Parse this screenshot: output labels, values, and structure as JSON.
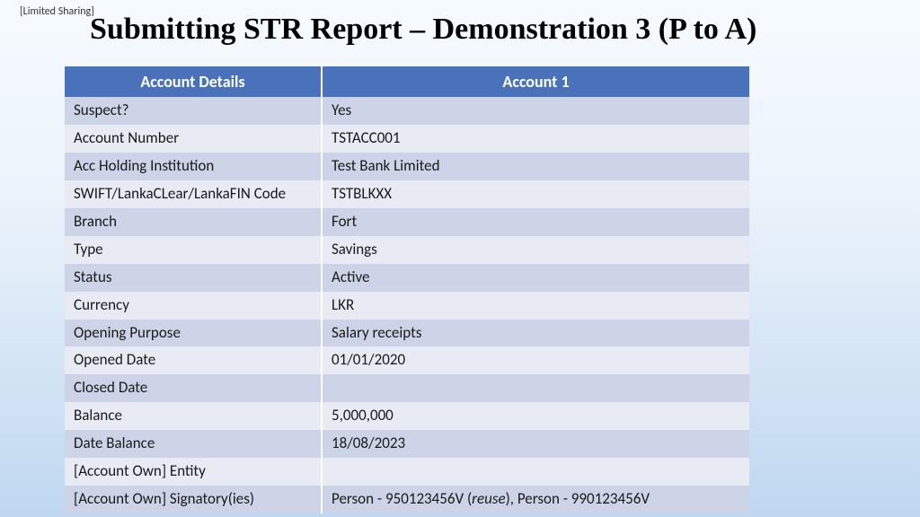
{
  "classification": "[Limited Sharing]",
  "title": "Submitting STR Report – Demonstration 3 (P to A)",
  "table": {
    "header_bg": "#4a72ba",
    "header_fg": "#ffffff",
    "band_a_bg": "#cdd4e7",
    "band_b_bg": "#e8ebf4",
    "col1_header": "Account Details",
    "col2_header": "Account 1",
    "rows": [
      {
        "label": "Suspect?",
        "value": "Yes"
      },
      {
        "label": "Account Number",
        "value": "TSTACC001"
      },
      {
        "label": "Acc Holding Institution",
        "value": "Test Bank Limited"
      },
      {
        "label": "SWIFT/LankaCLear/LankaFIN Code",
        "value": "TSTBLKXX"
      },
      {
        "label": "Branch",
        "value": "Fort"
      },
      {
        "label": "Type",
        "value": "Savings"
      },
      {
        "label": "Status",
        "value": "Active"
      },
      {
        "label": "Currency",
        "value": "LKR"
      },
      {
        "label": "Opening Purpose",
        "value": "Salary receipts"
      },
      {
        "label": "Opened Date",
        "value": "01/01/2020"
      },
      {
        "label": "Closed Date",
        "value": ""
      },
      {
        "label": "Balance",
        "value": "5,000,000"
      },
      {
        "label": "Date Balance",
        "value": "18/08/2023"
      },
      {
        "label": "[Account Own] Entity",
        "value": ""
      },
      {
        "label": "[Account Own] Signatory(ies)",
        "value_parts": [
          "Person - 950123456V (",
          {
            "text": "reuse",
            "italic": true
          },
          "), Person - 990123456V"
        ]
      }
    ]
  }
}
